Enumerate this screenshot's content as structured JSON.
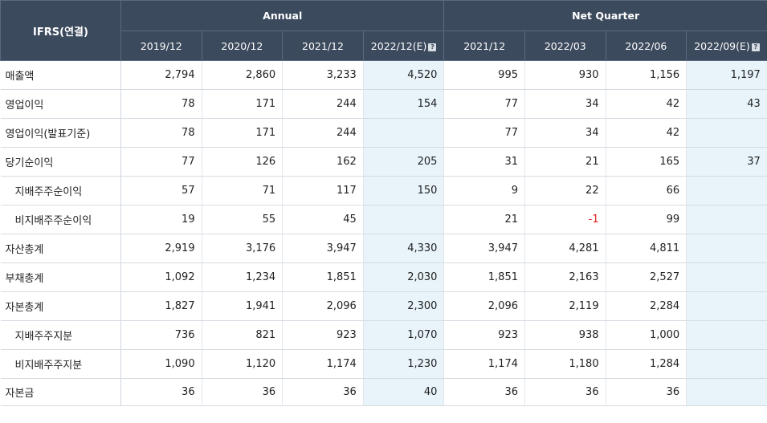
{
  "header": {
    "label": "IFRS(연결)",
    "group_annual": "Annual",
    "group_quarter": "Net Quarter",
    "est_icon_glyph": "?",
    "columns": [
      {
        "label": "2019/12",
        "estimate": false
      },
      {
        "label": "2020/12",
        "estimate": false
      },
      {
        "label": "2021/12",
        "estimate": false
      },
      {
        "label": "2022/12(E)",
        "estimate": true
      },
      {
        "label": "2021/12",
        "estimate": false
      },
      {
        "label": "2022/03",
        "estimate": false
      },
      {
        "label": "2022/06",
        "estimate": false
      },
      {
        "label": "2022/09(E)",
        "estimate": true
      }
    ]
  },
  "rows": [
    {
      "label": "매출액",
      "sub": false,
      "values": [
        "2,794",
        "2,860",
        "3,233",
        "4,520",
        "995",
        "930",
        "1,156",
        "1,197"
      ]
    },
    {
      "label": "영업이익",
      "sub": false,
      "values": [
        "78",
        "171",
        "244",
        "154",
        "77",
        "34",
        "42",
        "43"
      ]
    },
    {
      "label": "영업이익(발표기준)",
      "sub": false,
      "values": [
        "78",
        "171",
        "244",
        "",
        "77",
        "34",
        "42",
        ""
      ]
    },
    {
      "label": "당기순이익",
      "sub": false,
      "values": [
        "77",
        "126",
        "162",
        "205",
        "31",
        "21",
        "165",
        "37"
      ]
    },
    {
      "label": "지배주주순이익",
      "sub": true,
      "values": [
        "57",
        "71",
        "117",
        "150",
        "9",
        "22",
        "66",
        ""
      ]
    },
    {
      "label": "비지배주주순이익",
      "sub": true,
      "values": [
        "19",
        "55",
        "45",
        "",
        "21",
        "-1",
        "99",
        ""
      ]
    },
    {
      "label": "자산총계",
      "sub": false,
      "values": [
        "2,919",
        "3,176",
        "3,947",
        "4,330",
        "3,947",
        "4,281",
        "4,811",
        ""
      ]
    },
    {
      "label": "부채총계",
      "sub": false,
      "values": [
        "1,092",
        "1,234",
        "1,851",
        "2,030",
        "1,851",
        "2,163",
        "2,527",
        ""
      ]
    },
    {
      "label": "자본총계",
      "sub": false,
      "values": [
        "1,827",
        "1,941",
        "2,096",
        "2,300",
        "2,096",
        "2,119",
        "2,284",
        ""
      ]
    },
    {
      "label": "지배주주지분",
      "sub": true,
      "values": [
        "736",
        "821",
        "923",
        "1,070",
        "923",
        "938",
        "1,000",
        ""
      ]
    },
    {
      "label": "비지배주주지분",
      "sub": true,
      "values": [
        "1,090",
        "1,120",
        "1,174",
        "1,230",
        "1,174",
        "1,180",
        "1,284",
        ""
      ]
    },
    {
      "label": "자본금",
      "sub": false,
      "values": [
        "36",
        "36",
        "36",
        "40",
        "36",
        "36",
        "36",
        ""
      ]
    }
  ],
  "colors": {
    "header_bg": "#3c4a5d",
    "estimate_bg": "#e8f4fa",
    "negative": "#e02020"
  }
}
